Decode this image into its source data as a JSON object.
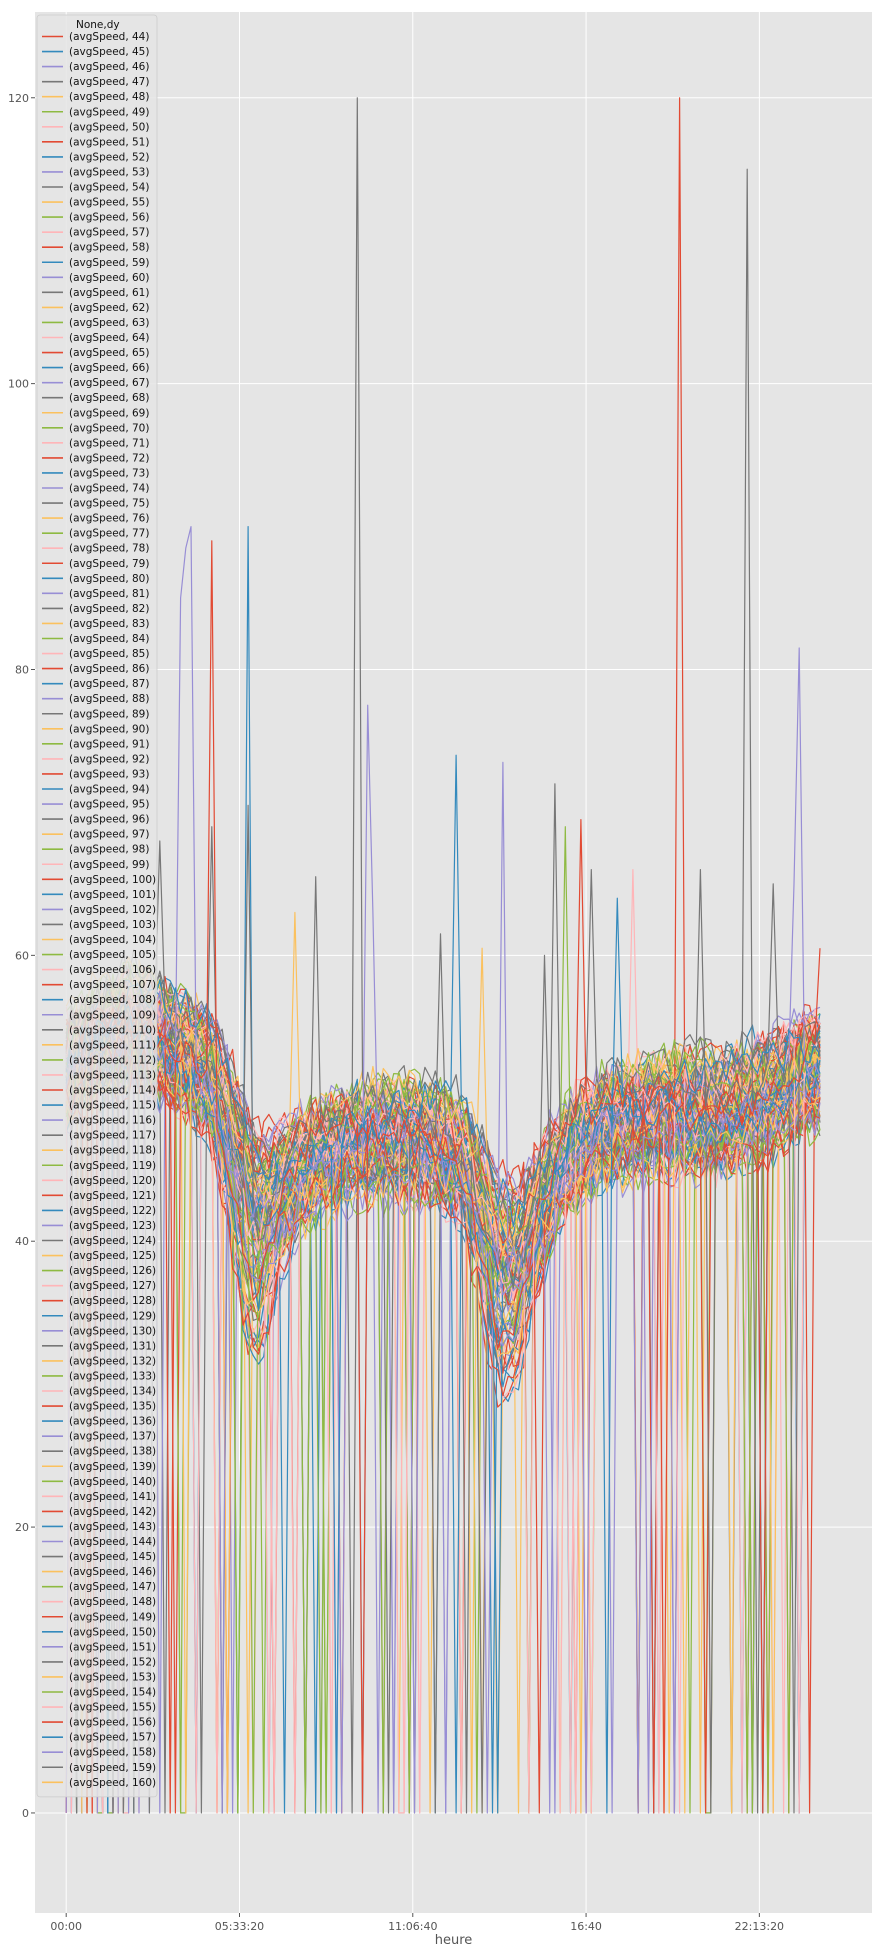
{
  "chart_data": {
    "type": "line",
    "xlabel": "heure",
    "ylabel": "",
    "xlim_seconds": [
      -3600,
      93000
    ],
    "ylim": [
      -7,
      126
    ],
    "x_ticks": [
      {
        "value": 0,
        "label": "00:00"
      },
      {
        "value": 20000,
        "label": "05:33:20"
      },
      {
        "value": 40000,
        "label": "11:06:40"
      },
      {
        "value": 60000,
        "label": "16:40"
      },
      {
        "value": 80000,
        "label": "22:13:20"
      }
    ],
    "y_ticks": [
      0,
      20,
      40,
      60,
      80,
      100,
      120
    ],
    "grid": true,
    "legend_placement": "upper-left",
    "legend_title": "None,dy",
    "palette": [
      "#E24A33",
      "#348ABD",
      "#988ED5",
      "#777777",
      "#FBC15E",
      "#8EBA42",
      "#FFB5B8"
    ],
    "series_names": [
      "(avgSpeed, 44)",
      "(avgSpeed, 45)",
      "(avgSpeed, 46)",
      "(avgSpeed, 47)",
      "(avgSpeed, 48)",
      "(avgSpeed, 49)",
      "(avgSpeed, 50)",
      "(avgSpeed, 51)",
      "(avgSpeed, 52)",
      "(avgSpeed, 53)",
      "(avgSpeed, 54)",
      "(avgSpeed, 55)",
      "(avgSpeed, 56)",
      "(avgSpeed, 57)",
      "(avgSpeed, 58)",
      "(avgSpeed, 59)",
      "(avgSpeed, 60)",
      "(avgSpeed, 61)",
      "(avgSpeed, 62)",
      "(avgSpeed, 63)",
      "(avgSpeed, 64)",
      "(avgSpeed, 65)",
      "(avgSpeed, 66)",
      "(avgSpeed, 67)",
      "(avgSpeed, 68)",
      "(avgSpeed, 69)",
      "(avgSpeed, 70)",
      "(avgSpeed, 71)",
      "(avgSpeed, 72)",
      "(avgSpeed, 73)",
      "(avgSpeed, 74)",
      "(avgSpeed, 75)",
      "(avgSpeed, 76)",
      "(avgSpeed, 77)",
      "(avgSpeed, 78)",
      "(avgSpeed, 79)",
      "(avgSpeed, 80)",
      "(avgSpeed, 81)",
      "(avgSpeed, 82)",
      "(avgSpeed, 83)",
      "(avgSpeed, 84)",
      "(avgSpeed, 85)",
      "(avgSpeed, 86)",
      "(avgSpeed, 87)",
      "(avgSpeed, 88)",
      "(avgSpeed, 89)",
      "(avgSpeed, 90)",
      "(avgSpeed, 91)",
      "(avgSpeed, 92)",
      "(avgSpeed, 93)",
      "(avgSpeed, 94)",
      "(avgSpeed, 95)",
      "(avgSpeed, 96)",
      "(avgSpeed, 97)",
      "(avgSpeed, 98)",
      "(avgSpeed, 99)",
      "(avgSpeed, 100)",
      "(avgSpeed, 101)",
      "(avgSpeed, 102)",
      "(avgSpeed, 103)",
      "(avgSpeed, 104)",
      "(avgSpeed, 105)",
      "(avgSpeed, 106)",
      "(avgSpeed, 107)",
      "(avgSpeed, 108)",
      "(avgSpeed, 109)",
      "(avgSpeed, 110)",
      "(avgSpeed, 111)",
      "(avgSpeed, 112)",
      "(avgSpeed, 113)",
      "(avgSpeed, 114)",
      "(avgSpeed, 115)",
      "(avgSpeed, 116)",
      "(avgSpeed, 117)",
      "(avgSpeed, 118)",
      "(avgSpeed, 119)",
      "(avgSpeed, 120)",
      "(avgSpeed, 121)",
      "(avgSpeed, 122)",
      "(avgSpeed, 123)",
      "(avgSpeed, 124)",
      "(avgSpeed, 125)",
      "(avgSpeed, 126)",
      "(avgSpeed, 127)",
      "(avgSpeed, 128)",
      "(avgSpeed, 129)",
      "(avgSpeed, 130)",
      "(avgSpeed, 131)",
      "(avgSpeed, 132)",
      "(avgSpeed, 133)",
      "(avgSpeed, 134)",
      "(avgSpeed, 135)",
      "(avgSpeed, 136)",
      "(avgSpeed, 137)",
      "(avgSpeed, 138)",
      "(avgSpeed, 139)",
      "(avgSpeed, 140)",
      "(avgSpeed, 141)",
      "(avgSpeed, 142)",
      "(avgSpeed, 143)",
      "(avgSpeed, 144)",
      "(avgSpeed, 145)",
      "(avgSpeed, 146)",
      "(avgSpeed, 147)",
      "(avgSpeed, 148)",
      "(avgSpeed, 149)",
      "(avgSpeed, 150)",
      "(avgSpeed, 151)",
      "(avgSpeed, 152)",
      "(avgSpeed, 153)",
      "(avgSpeed, 154)",
      "(avgSpeed, 155)",
      "(avgSpeed, 156)",
      "(avgSpeed, 157)",
      "(avgSpeed, 158)",
      "(avgSpeed, 159)",
      "(avgSpeed, 160)"
    ],
    "x_sample_step_seconds": 600,
    "x_end_seconds": 87000,
    "baseline_pattern": {
      "x": [
        0,
        4000,
        8000,
        11000,
        14000,
        17000,
        20000,
        22000,
        26000,
        30000,
        34000,
        38000,
        42000,
        46000,
        48000,
        50000,
        52000,
        55000,
        58000,
        62000,
        66000,
        70000,
        74000,
        78000,
        82000,
        85000,
        87000
      ],
      "y": [
        52,
        54,
        55,
        54,
        53,
        52,
        49,
        46,
        45,
        46,
        47,
        47,
        47,
        46.5,
        45,
        43,
        42,
        43.5,
        46,
        48,
        48.5,
        49,
        49,
        49.5,
        50.5,
        51.5,
        52
      ]
    },
    "dips": [
      {
        "center": 21500,
        "width": 3500,
        "depth": 11
      },
      {
        "center": 50500,
        "width": 3800,
        "depth": 10
      }
    ],
    "dips_affect_every_nth_series": 3,
    "spikes": [
      {
        "series": 3,
        "x": 33600,
        "y": 120
      },
      {
        "series": 14,
        "x": 71000,
        "y": 120
      },
      {
        "series": 3,
        "x": 78300,
        "y": 115
      },
      {
        "series": 2,
        "x": 14100,
        "y": 90
      },
      {
        "series": 0,
        "x": 16800,
        "y": 89
      },
      {
        "series": 15,
        "x": 20900,
        "y": 90
      },
      {
        "series": 2,
        "x": 13800,
        "y": 88.5
      },
      {
        "series": 2,
        "x": 13200,
        "y": 85
      },
      {
        "series": 2,
        "x": 84800,
        "y": 81.5
      },
      {
        "series": 2,
        "x": 35000,
        "y": 77.5
      },
      {
        "series": 1,
        "x": 44700,
        "y": 74
      },
      {
        "series": 2,
        "x": 50300,
        "y": 73.5
      },
      {
        "series": 3,
        "x": 56400,
        "y": 72
      },
      {
        "series": 0,
        "x": 59500,
        "y": 69.5
      },
      {
        "series": 5,
        "x": 57700,
        "y": 69
      },
      {
        "series": 3,
        "x": 17000,
        "y": 69
      },
      {
        "series": 3,
        "x": 20700,
        "y": 70.5
      },
      {
        "series": 3,
        "x": 10800,
        "y": 68
      },
      {
        "series": 6,
        "x": 65400,
        "y": 66
      },
      {
        "series": 3,
        "x": 28700,
        "y": 65.5
      },
      {
        "series": 3,
        "x": 60500,
        "y": 66
      },
      {
        "series": 3,
        "x": 73300,
        "y": 66
      },
      {
        "series": 1,
        "x": 63700,
        "y": 64
      },
      {
        "series": 3,
        "x": 81700,
        "y": 65
      },
      {
        "series": 2,
        "x": 83900,
        "y": 65
      },
      {
        "series": 4,
        "x": 26200,
        "y": 63
      },
      {
        "series": 2,
        "x": 35600,
        "y": 63
      },
      {
        "series": 3,
        "x": 43000,
        "y": 61.5
      },
      {
        "series": 4,
        "x": 48100,
        "y": 60.5
      },
      {
        "series": 0,
        "x": 86800,
        "y": 60.5
      },
      {
        "series": 3,
        "x": 55000,
        "y": 60
      }
    ],
    "dropouts": {
      "count": 190,
      "x_from": 500,
      "x_to": 86500,
      "y": 0
    }
  }
}
